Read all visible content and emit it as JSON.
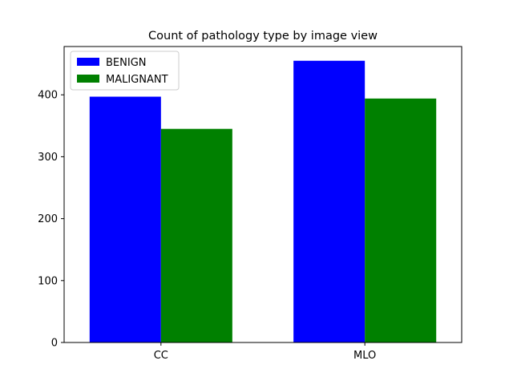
{
  "chart_data": {
    "type": "bar",
    "title": "Count of pathology type by image view",
    "xlabel": "",
    "ylabel": "",
    "categories": [
      "CC",
      "MLO"
    ],
    "series": [
      {
        "name": "BENIGN",
        "values": [
          397,
          455
        ],
        "color": "#0000ff"
      },
      {
        "name": "MALIGNANT",
        "values": [
          345,
          394
        ],
        "color": "#008000"
      }
    ],
    "ylim": [
      0,
      478
    ],
    "yticks": [
      0,
      100,
      200,
      300,
      400
    ],
    "grid": false,
    "legend_position": "upper left"
  }
}
